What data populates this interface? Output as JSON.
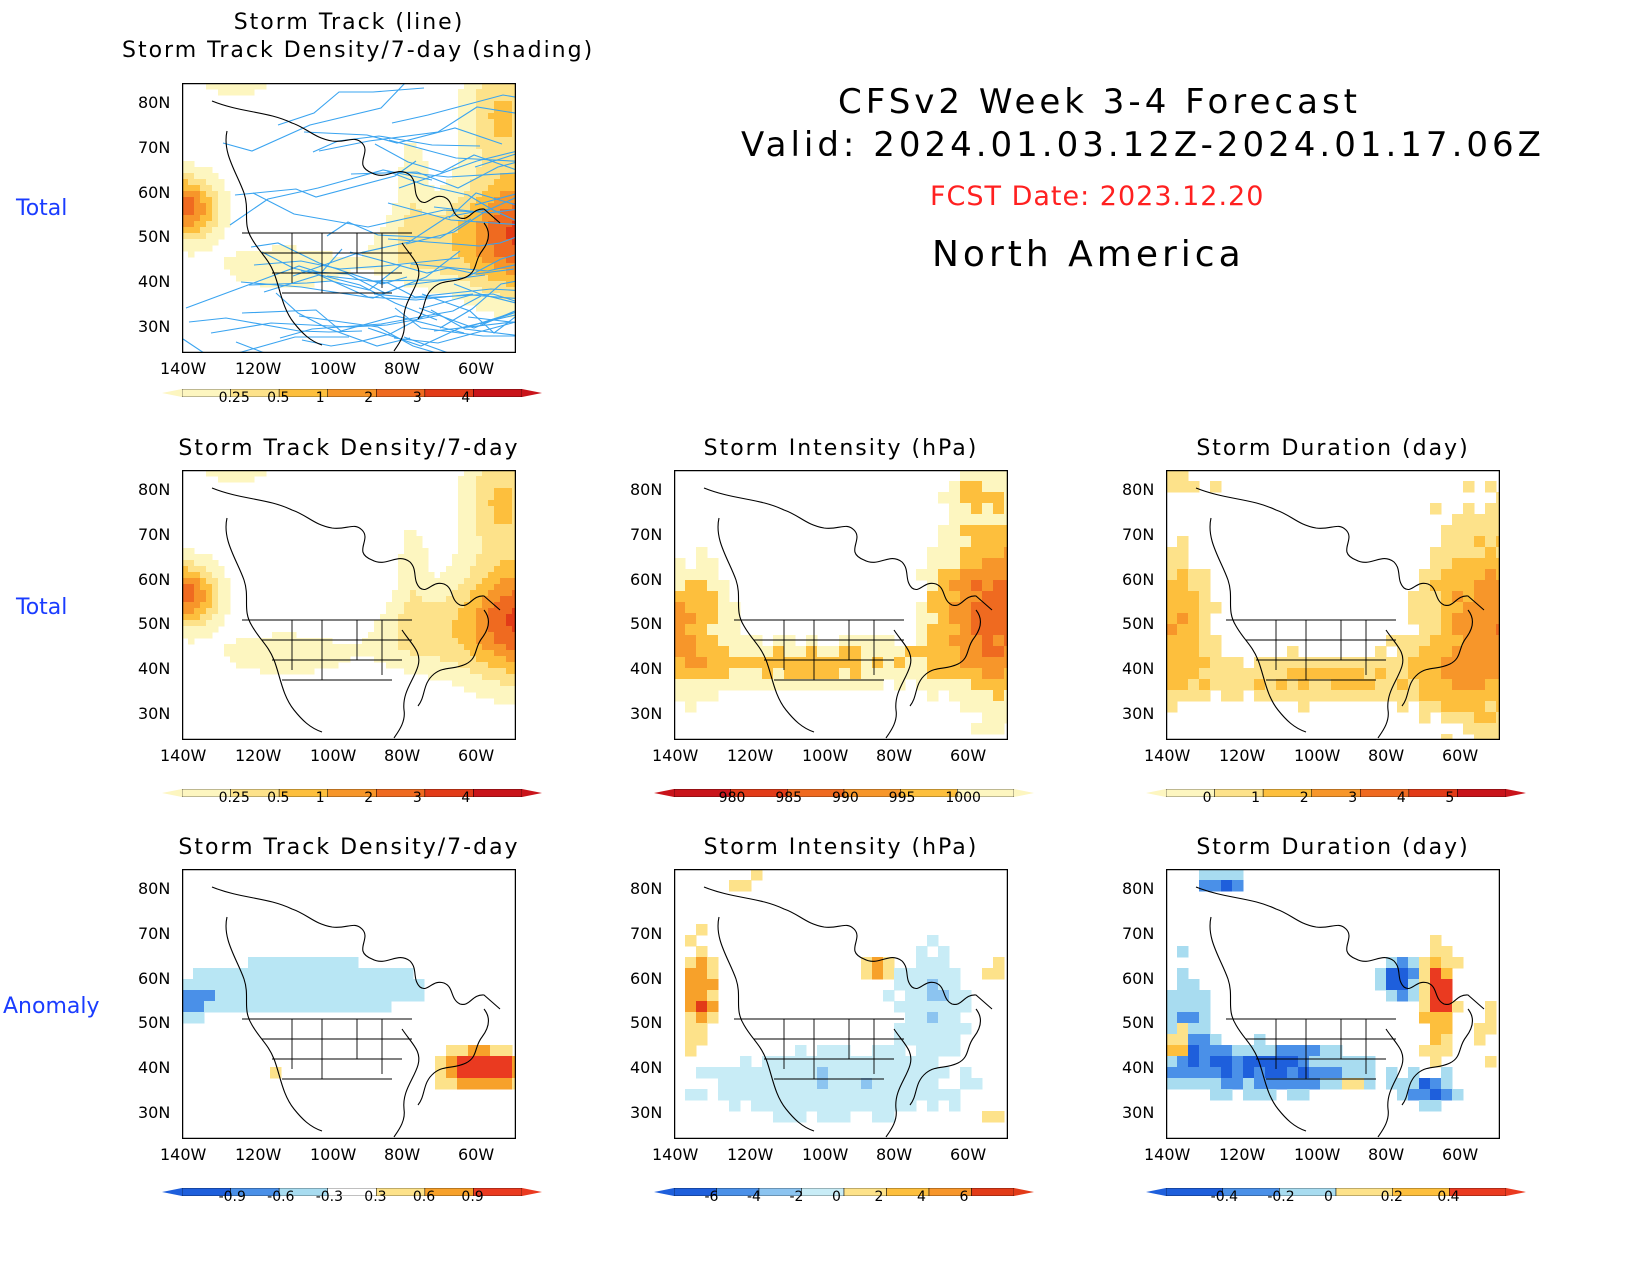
{
  "header": {
    "line1": "CFSv2  Week  3-4  Forecast",
    "line2": "Valid:  2024.01.03.12Z-2024.01.17.06Z",
    "fcst_date": "FCST Date: 2023.12.20",
    "region": "North  America"
  },
  "row_labels": [
    "Total",
    "Total",
    "Anomaly"
  ],
  "axes": {
    "lat_labels": [
      "80N",
      "70N",
      "60N",
      "50N",
      "40N",
      "30N"
    ],
    "lon_labels": [
      "140W",
      "120W",
      "100W",
      "80W",
      "60W"
    ]
  },
  "panels": [
    {
      "id": "p1",
      "title": [
        "Storm  Track  (line)",
        "Storm  Track  Density/7-day  (shading)"
      ],
      "scheme": "density",
      "tracks": true,
      "colorbar": {
        "labels": [
          "0.25",
          "0.5",
          "1",
          "2",
          "3",
          "4"
        ],
        "colors": [
          "#fdf6c0",
          "#fde28a",
          "#fdbf3d",
          "#f7962a",
          "#ef6a20",
          "#e23b18",
          "#c9141b"
        ]
      }
    },
    {
      "id": "p2",
      "title": [
        "Storm  Track  Density/7-day"
      ],
      "scheme": "density",
      "tracks": false,
      "colorbar": {
        "labels": [
          "0.25",
          "0.5",
          "1",
          "2",
          "3",
          "4"
        ],
        "colors": [
          "#fdf6c0",
          "#fde28a",
          "#fdbf3d",
          "#f7962a",
          "#ef6a20",
          "#e23b18",
          "#c9141b"
        ]
      }
    },
    {
      "id": "p3",
      "title": [
        "Storm  Intensity  (hPa)"
      ],
      "scheme": "intensity",
      "tracks": false,
      "colorbar": {
        "labels": [
          "980",
          "985",
          "990",
          "995",
          "1000"
        ],
        "colors": [
          "#c9141b",
          "#e23b18",
          "#ef6a20",
          "#f7962a",
          "#fdbf3d",
          "#fdf6c0"
        ]
      }
    },
    {
      "id": "p4",
      "title": [
        "Storm  Duration  (day)"
      ],
      "scheme": "duration",
      "tracks": false,
      "colorbar": {
        "labels": [
          "0",
          "1",
          "2",
          "3",
          "4",
          "5"
        ],
        "colors": [
          "#fdf6c0",
          "#fde28a",
          "#fdbf3d",
          "#f7962a",
          "#ef6a20",
          "#e23b18",
          "#c9141b"
        ]
      }
    },
    {
      "id": "p5",
      "title": [
        "Storm  Track  Density/7-day"
      ],
      "scheme": "anom_density",
      "tracks": false,
      "colorbar": {
        "labels": [
          "-0.9",
          "-0.6",
          "-0.3",
          "0.3",
          "0.6",
          "0.9"
        ],
        "colors": [
          "#1e5fdc",
          "#4a90e8",
          "#a8dcf0",
          "#ffffff",
          "#fde28a",
          "#f7a12a",
          "#ea3a20"
        ]
      }
    },
    {
      "id": "p6",
      "title": [
        "Storm  Intensity  (hPa)"
      ],
      "scheme": "anom_intensity",
      "tracks": false,
      "colorbar": {
        "labels": [
          "-6",
          "-4",
          "-2",
          "0",
          "2",
          "4",
          "6"
        ],
        "colors": [
          "#1e5fdc",
          "#4a90e8",
          "#8cc4f0",
          "#c8ecf6",
          "#fde28a",
          "#fdbf3d",
          "#f7962a",
          "#e23b18"
        ]
      }
    },
    {
      "id": "p7",
      "title": [
        "Storm  Duration  (day)"
      ],
      "scheme": "anom_duration",
      "tracks": false,
      "colorbar": {
        "labels": [
          "-0.4",
          "-0.2",
          "0",
          "0.2",
          "0.4"
        ],
        "colors": [
          "#1e5fdc",
          "#4a90e8",
          "#a8dcf0",
          "#fde28a",
          "#fdbf3d",
          "#ea3a20"
        ]
      }
    }
  ]
}
